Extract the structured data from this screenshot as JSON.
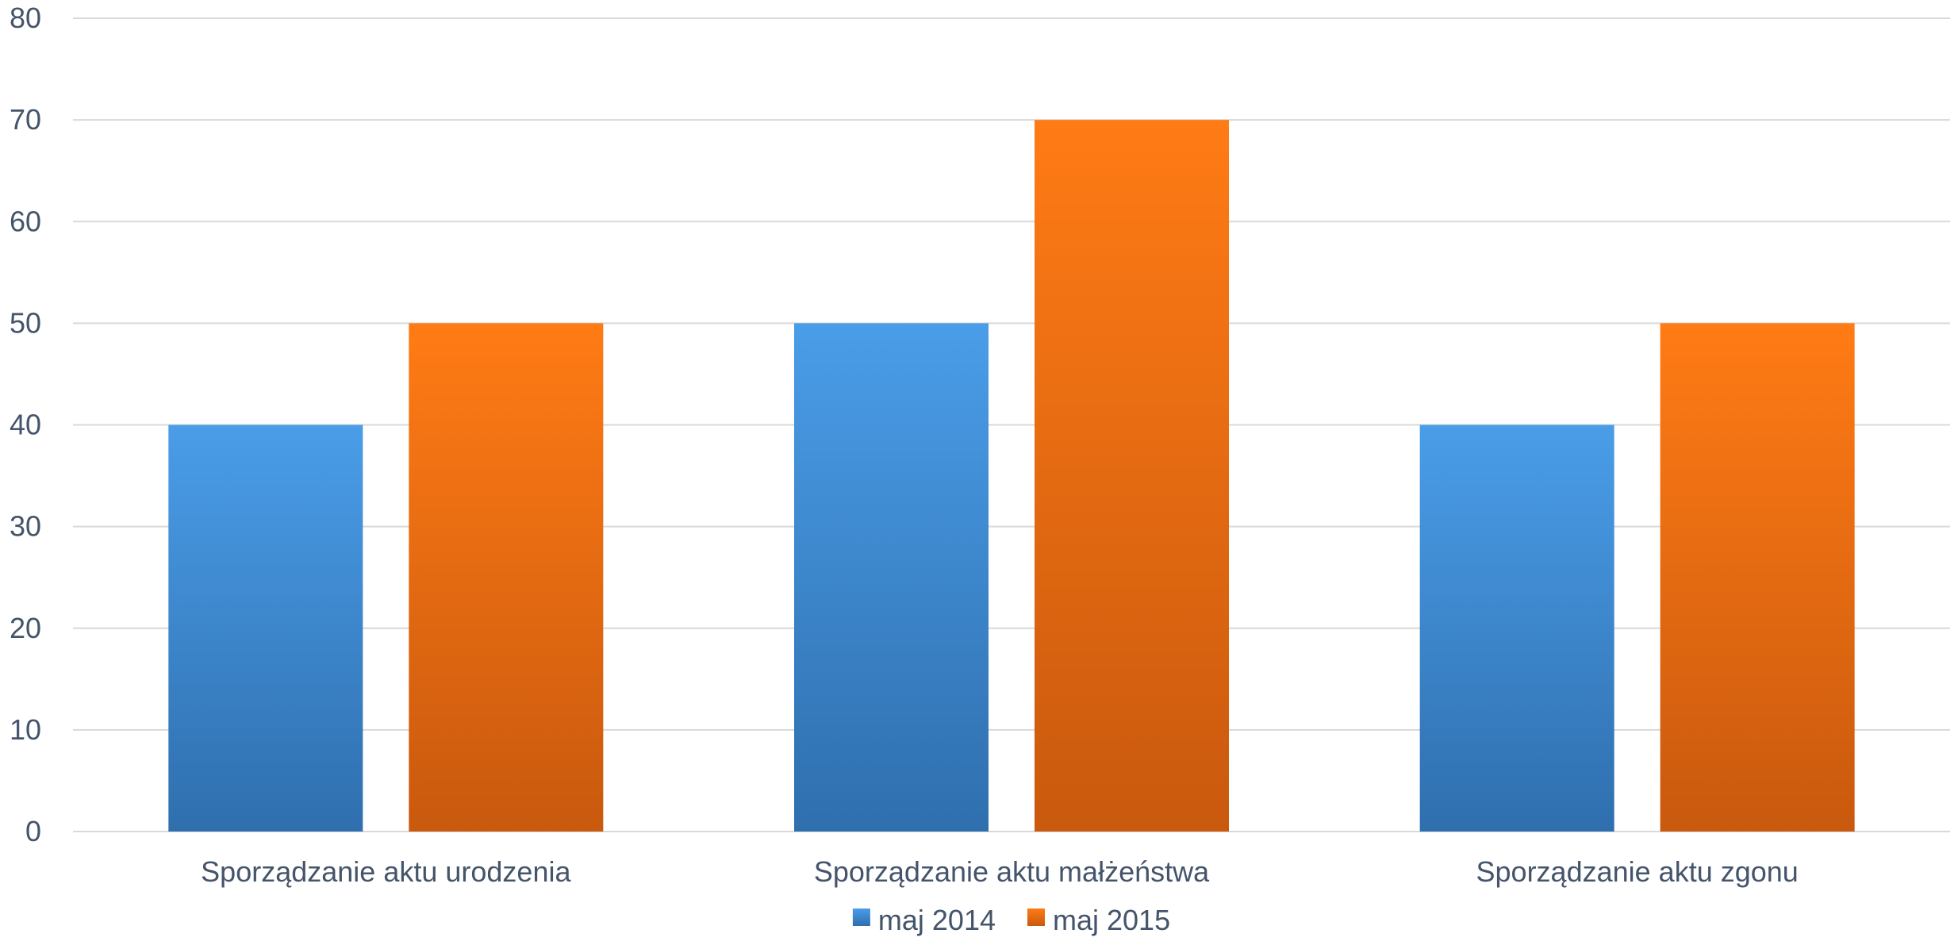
{
  "colors": {
    "series_1_light": "#4a9de8",
    "series_1_dark": "#2f6fae",
    "series_2_light": "#ff7b15",
    "series_2_dark": "#c9590e",
    "grid": "#d9d9d9",
    "text": "#44546a"
  },
  "chart_data": {
    "type": "bar",
    "title": "",
    "xlabel": "",
    "ylabel": "",
    "ylim": [
      0,
      80
    ],
    "yticks": [
      0,
      10,
      20,
      30,
      40,
      50,
      60,
      70,
      80
    ],
    "grid": true,
    "legend_position": "bottom",
    "categories": [
      "Sporządzanie aktu urodzenia",
      "Sporządzanie aktu małżeństwa",
      "Sporządzanie aktu zgonu"
    ],
    "series": [
      {
        "name": "maj 2014",
        "values": [
          40,
          50,
          40
        ]
      },
      {
        "name": "maj 2015",
        "values": [
          50,
          70,
          50
        ]
      }
    ]
  }
}
